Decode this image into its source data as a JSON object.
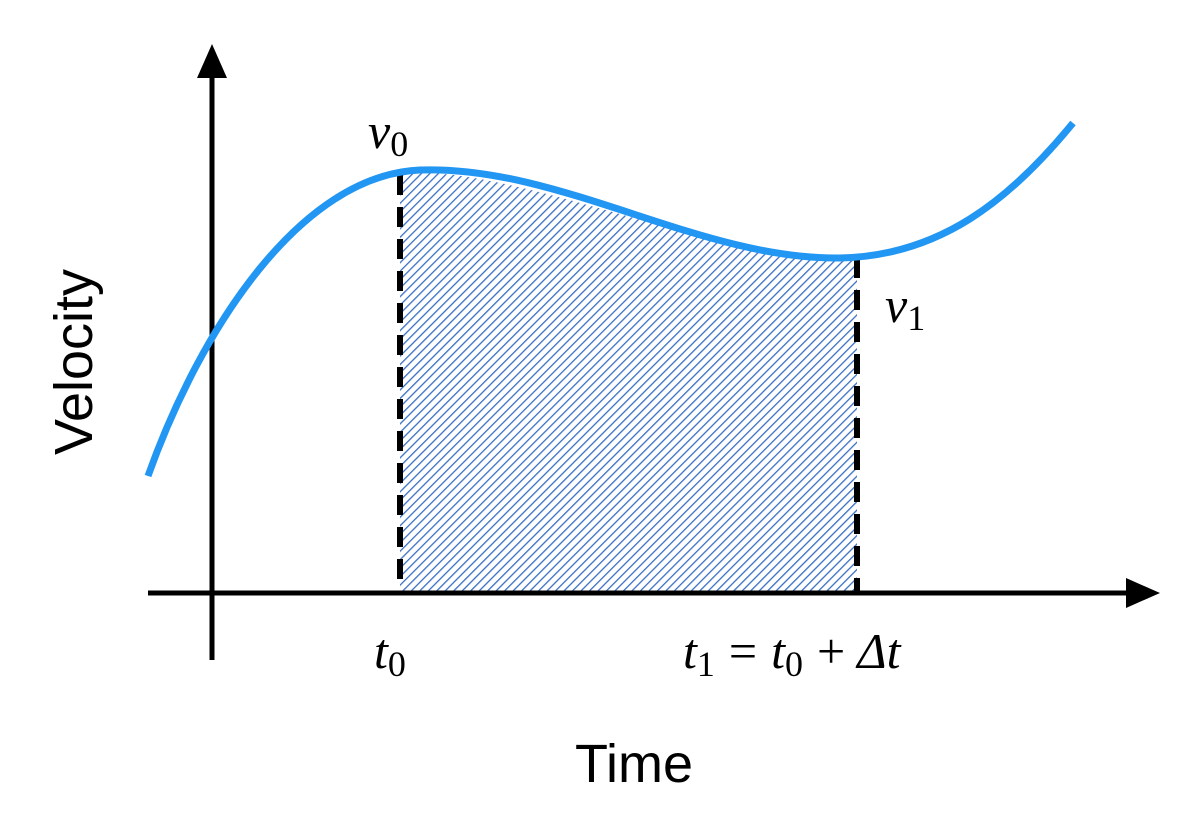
{
  "axes": {
    "y_label": "Velocity",
    "x_label": "Time"
  },
  "annotations": {
    "v0": {
      "symbol": "v",
      "subscript": "0"
    },
    "v1": {
      "symbol": "v",
      "subscript": "1"
    },
    "t0": {
      "symbol": "t",
      "subscript": "0"
    },
    "t1": {
      "lhs": {
        "symbol": "t",
        "subscript": "1"
      },
      "operator": "=",
      "rhs": {
        "symbol": "t",
        "subscript": "0"
      },
      "plus": "+",
      "delta": "Δt"
    }
  }
}
